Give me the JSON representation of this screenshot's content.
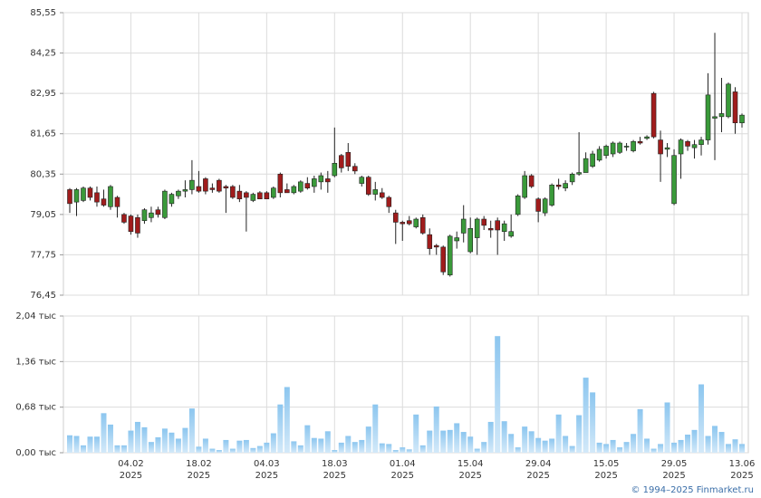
{
  "chart_data": [
    {
      "type": "candlestick",
      "up_color": "#3a9a3a",
      "down_color": "#a01c1c",
      "grid": true,
      "ylim": [
        76.45,
        85.55
      ],
      "yticks": [
        {
          "value": 76.45,
          "label": "76,45"
        },
        {
          "value": 77.75,
          "label": "77,75"
        },
        {
          "value": 79.05,
          "label": "79,05"
        },
        {
          "value": 80.35,
          "label": "80,35"
        },
        {
          "value": 81.65,
          "label": "81,65"
        },
        {
          "value": 82.95,
          "label": "82,95"
        },
        {
          "value": 84.25,
          "label": "84,25"
        },
        {
          "value": 85.55,
          "label": "85,55"
        }
      ],
      "open": [
        79.85,
        79.45,
        79.5,
        79.9,
        79.75,
        79.55,
        79.3,
        79.6,
        79.05,
        79.0,
        78.95,
        78.85,
        78.95,
        79.2,
        78.95,
        79.4,
        79.65,
        79.8,
        79.85,
        79.95,
        80.2,
        79.9,
        80.15,
        79.95,
        79.95,
        79.8,
        79.75,
        79.5,
        79.75,
        79.75,
        79.6,
        80.35,
        79.85,
        79.75,
        79.8,
        80.05,
        79.95,
        80.1,
        80.2,
        80.3,
        80.95,
        81.05,
        80.6,
        80.05,
        80.25,
        79.7,
        79.75,
        79.6,
        79.1,
        78.8,
        78.85,
        78.65,
        78.95,
        78.4,
        78.05,
        78.0,
        77.1,
        78.2,
        78.45,
        77.85,
        78.3,
        78.9,
        78.6,
        78.85,
        78.5,
        78.35,
        79.05,
        79.6,
        80.3,
        79.55,
        79.1,
        79.35,
        80.0,
        79.9,
        80.1,
        80.35,
        80.4,
        80.6,
        80.8,
        80.95,
        81.0,
        81.05,
        81.25,
        81.1,
        81.4,
        81.5,
        82.95,
        81.45,
        81.15,
        79.4,
        81.0,
        81.4,
        81.2,
        81.3,
        81.45,
        82.15,
        82.2,
        82.2,
        83.0,
        82.0
      ],
      "high": [
        79.9,
        79.9,
        79.95,
        79.95,
        79.95,
        79.85,
        80.0,
        79.65,
        79.1,
        79.05,
        79.05,
        79.25,
        79.3,
        79.3,
        79.85,
        79.75,
        79.85,
        80.15,
        80.8,
        80.45,
        80.25,
        80.05,
        80.2,
        80.0,
        80.0,
        80.0,
        79.8,
        79.75,
        79.8,
        79.8,
        79.95,
        80.4,
        80.05,
        80.0,
        80.15,
        80.25,
        80.3,
        80.4,
        80.45,
        81.85,
        81.0,
        81.35,
        80.7,
        80.3,
        80.3,
        80.1,
        79.9,
        79.65,
        79.2,
        78.85,
        79.0,
        78.95,
        79.05,
        78.6,
        78.1,
        78.05,
        78.4,
        78.5,
        79.35,
        78.95,
        78.95,
        79.0,
        78.85,
        78.95,
        78.85,
        79.05,
        79.7,
        80.45,
        80.35,
        79.6,
        79.6,
        80.05,
        80.2,
        80.15,
        80.4,
        81.7,
        81.05,
        81.1,
        81.25,
        81.3,
        81.4,
        81.4,
        81.35,
        81.45,
        81.55,
        81.6,
        83.0,
        81.75,
        81.35,
        81.15,
        81.5,
        81.45,
        81.45,
        81.55,
        83.6,
        84.9,
        83.45,
        83.3,
        83.15,
        82.3
      ],
      "low": [
        79.1,
        79.0,
        79.45,
        79.5,
        79.3,
        79.3,
        79.2,
        78.95,
        78.75,
        78.4,
        78.3,
        78.75,
        78.8,
        78.95,
        78.9,
        79.3,
        79.55,
        79.6,
        79.7,
        79.75,
        79.7,
        79.75,
        79.75,
        79.1,
        79.55,
        79.45,
        78.5,
        79.45,
        79.55,
        79.55,
        79.55,
        79.6,
        79.75,
        79.7,
        79.75,
        79.85,
        79.75,
        79.85,
        79.75,
        80.25,
        80.4,
        80.45,
        80.35,
        79.95,
        79.65,
        79.5,
        79.55,
        79.1,
        78.1,
        78.2,
        78.7,
        78.6,
        78.4,
        77.75,
        77.75,
        77.1,
        77.05,
        77.95,
        78.15,
        77.8,
        77.75,
        78.55,
        78.3,
        77.75,
        78.2,
        78.3,
        79.0,
        79.55,
        79.9,
        78.8,
        79.0,
        79.3,
        79.85,
        79.8,
        80.0,
        80.3,
        80.4,
        80.55,
        80.75,
        80.85,
        80.9,
        81.0,
        81.1,
        81.05,
        81.3,
        81.45,
        81.5,
        80.1,
        80.9,
        79.35,
        80.2,
        81.1,
        80.85,
        80.95,
        81.3,
        80.8,
        81.7,
        82.15,
        81.65,
        81.85
      ],
      "close": [
        79.4,
        79.85,
        79.9,
        79.6,
        79.45,
        79.35,
        79.95,
        79.3,
        78.8,
        78.5,
        78.45,
        79.2,
        79.1,
        79.05,
        79.8,
        79.7,
        79.8,
        79.85,
        80.15,
        79.8,
        79.8,
        79.85,
        79.8,
        79.9,
        79.6,
        79.55,
        79.6,
        79.7,
        79.55,
        79.55,
        79.9,
        79.75,
        79.75,
        79.95,
        80.1,
        79.9,
        80.2,
        80.3,
        80.1,
        80.7,
        80.55,
        80.6,
        80.45,
        80.25,
        79.7,
        79.85,
        79.6,
        79.3,
        78.8,
        78.75,
        78.75,
        78.9,
        78.45,
        77.95,
        78.0,
        77.2,
        78.35,
        78.3,
        78.9,
        78.6,
        78.9,
        78.7,
        78.55,
        78.55,
        78.75,
        78.5,
        79.65,
        80.3,
        79.95,
        79.15,
        79.55,
        80.0,
        79.95,
        80.05,
        80.35,
        80.4,
        80.85,
        81.0,
        81.15,
        81.25,
        81.35,
        81.35,
        81.25,
        81.4,
        81.35,
        81.55,
        81.55,
        81.0,
        81.2,
        80.95,
        81.45,
        81.25,
        81.3,
        81.45,
        82.9,
        82.2,
        82.3,
        83.25,
        82.0,
        82.25
      ]
    },
    {
      "type": "bar",
      "color": "#8cc6ef",
      "grid": true,
      "ylim": [
        0,
        2.04
      ],
      "yticks": [
        {
          "value": 0,
          "label": "0,00 тыс"
        },
        {
          "value": 0.68,
          "label": "0,68 тыс"
        },
        {
          "value": 1.36,
          "label": "1,36 тыс"
        },
        {
          "value": 2.04,
          "label": "2,04 тыс"
        }
      ],
      "categories": [
        null,
        null,
        null,
        null,
        null,
        null,
        null,
        null,
        null,
        [
          "04.02",
          "2025"
        ],
        null,
        null,
        null,
        null,
        null,
        null,
        null,
        null,
        null,
        [
          "18.02",
          "2025"
        ],
        null,
        null,
        null,
        null,
        null,
        null,
        null,
        null,
        null,
        [
          "04.03",
          "2025"
        ],
        null,
        null,
        null,
        null,
        null,
        null,
        null,
        null,
        null,
        [
          "18.03",
          "2025"
        ],
        null,
        null,
        null,
        null,
        null,
        null,
        null,
        null,
        null,
        [
          "01.04",
          "2025"
        ],
        null,
        null,
        null,
        null,
        null,
        null,
        null,
        null,
        null,
        [
          "15.04",
          "2025"
        ],
        null,
        null,
        null,
        null,
        null,
        null,
        null,
        null,
        null,
        [
          "29.04",
          "2025"
        ],
        null,
        null,
        null,
        null,
        null,
        null,
        null,
        null,
        null,
        [
          "15.05",
          "2025"
        ],
        null,
        null,
        null,
        null,
        null,
        null,
        null,
        null,
        null,
        [
          "29.05",
          "2025"
        ],
        null,
        null,
        null,
        null,
        null,
        null,
        null,
        null,
        null,
        [
          "13.06",
          "2025"
        ]
      ],
      "values": [
        0.26,
        0.25,
        0.11,
        0.24,
        0.24,
        0.59,
        0.42,
        0.11,
        0.11,
        0.33,
        0.46,
        0.38,
        0.16,
        0.23,
        0.36,
        0.3,
        0.21,
        0.37,
        0.66,
        0.09,
        0.21,
        0.06,
        0.04,
        0.19,
        0.06,
        0.18,
        0.19,
        0.07,
        0.1,
        0.15,
        0.29,
        0.72,
        0.98,
        0.17,
        0.11,
        0.41,
        0.22,
        0.21,
        0.32,
        0.04,
        0.15,
        0.25,
        0.16,
        0.19,
        0.39,
        0.72,
        0.14,
        0.13,
        0.04,
        0.08,
        0.05,
        0.57,
        0.11,
        0.33,
        0.69,
        0.33,
        0.34,
        0.44,
        0.31,
        0.24,
        0.06,
        0.16,
        0.46,
        1.74,
        0.47,
        0.28,
        0.08,
        0.39,
        0.32,
        0.22,
        0.18,
        0.21,
        0.57,
        0.25,
        0.1,
        0.56,
        1.12,
        0.9,
        0.15,
        0.13,
        0.19,
        0.08,
        0.16,
        0.28,
        0.65,
        0.21,
        0.06,
        0.13,
        0.75,
        0.15,
        0.19,
        0.27,
        0.34,
        1.02,
        0.25,
        0.4,
        0.31,
        0.13,
        0.2,
        0.13
      ]
    }
  ],
  "footer": "© 1994–2025 Finmarket.ru"
}
